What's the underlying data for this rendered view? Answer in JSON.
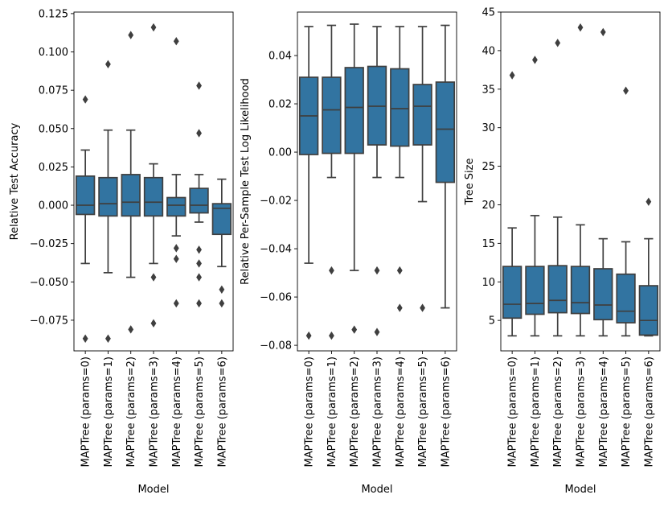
{
  "colors": {
    "box_fill": "#3274a1",
    "line": "#3f3f3f",
    "axis": "#000000",
    "background": "#ffffff"
  },
  "chart_data": [
    {
      "type": "box",
      "title": "",
      "xlabel": "Model",
      "ylabel": "Relative Test Accuracy",
      "ylim": [
        -0.095,
        0.126
      ],
      "yticks": [
        -0.075,
        -0.05,
        -0.025,
        0.0,
        0.025,
        0.05,
        0.075,
        0.1,
        0.125
      ],
      "ytick_labels": [
        "−0.075",
        "−0.050",
        "−0.025",
        "0.000",
        "0.025",
        "0.050",
        "0.075",
        "0.100",
        "0.125"
      ],
      "categories": [
        "MAPTree (params=0)",
        "MAPTree (params=1)",
        "MAPTree (params=2)",
        "MAPTree (params=3)",
        "MAPTree (params=4)",
        "MAPTree (params=5)",
        "MAPTree (params=6)"
      ],
      "boxes": [
        {
          "whislo": -0.038,
          "q1": -0.006,
          "med": 0.0,
          "q3": 0.019,
          "whishi": 0.036,
          "fliers": [
            0.069,
            -0.087
          ]
        },
        {
          "whislo": -0.044,
          "q1": -0.007,
          "med": 0.001,
          "q3": 0.018,
          "whishi": 0.049,
          "fliers": [
            0.092,
            -0.087
          ]
        },
        {
          "whislo": -0.047,
          "q1": -0.007,
          "med": 0.002,
          "q3": 0.02,
          "whishi": 0.049,
          "fliers": [
            0.111,
            -0.081
          ]
        },
        {
          "whislo": -0.038,
          "q1": -0.007,
          "med": 0.002,
          "q3": 0.018,
          "whishi": 0.027,
          "fliers": [
            0.116,
            -0.047,
            -0.077
          ]
        },
        {
          "whislo": -0.02,
          "q1": -0.007,
          "med": 0.0,
          "q3": 0.005,
          "whishi": 0.02,
          "fliers": [
            0.107,
            -0.028,
            -0.035,
            -0.064
          ]
        },
        {
          "whislo": -0.011,
          "q1": -0.005,
          "med": 0.0,
          "q3": 0.011,
          "whishi": 0.02,
          "fliers": [
            0.078,
            0.047,
            -0.029,
            -0.038,
            -0.047,
            -0.064
          ]
        },
        {
          "whislo": -0.04,
          "q1": -0.019,
          "med": -0.002,
          "q3": 0.001,
          "whishi": 0.017,
          "fliers": [
            -0.055,
            -0.064
          ]
        }
      ]
    },
    {
      "type": "box",
      "title": "",
      "xlabel": "Model",
      "ylabel": "Relative Per-Sample Test Log Likelihood",
      "ylim": [
        -0.0823,
        0.058
      ],
      "yticks": [
        -0.08,
        -0.06,
        -0.04,
        -0.02,
        0.0,
        0.02,
        0.04
      ],
      "ytick_labels": [
        "−0.08",
        "−0.06",
        "−0.04",
        "−0.02",
        "0.00",
        "0.02",
        "0.04"
      ],
      "categories": [
        "MAPTree (params=0)",
        "MAPTree (params=1)",
        "MAPTree (params=2)",
        "MAPTree (params=3)",
        "MAPTree (params=4)",
        "MAPTree (params=5)",
        "MAPTree (params=6)"
      ],
      "boxes": [
        {
          "whislo": -0.046,
          "q1": -0.001,
          "med": 0.015,
          "q3": 0.031,
          "whishi": 0.052,
          "fliers": [
            -0.076
          ]
        },
        {
          "whislo": -0.0105,
          "q1": -0.0005,
          "med": 0.0175,
          "q3": 0.031,
          "whishi": 0.0525,
          "fliers": [
            -0.049,
            -0.076
          ]
        },
        {
          "whislo": -0.049,
          "q1": -0.0005,
          "med": 0.0185,
          "q3": 0.035,
          "whishi": 0.053,
          "fliers": [
            -0.0735
          ]
        },
        {
          "whislo": -0.0105,
          "q1": 0.003,
          "med": 0.019,
          "q3": 0.0355,
          "whishi": 0.052,
          "fliers": [
            -0.049,
            -0.0745
          ]
        },
        {
          "whislo": -0.0105,
          "q1": 0.0025,
          "med": 0.018,
          "q3": 0.0345,
          "whishi": 0.052,
          "fliers": [
            -0.049,
            -0.0645
          ]
        },
        {
          "whislo": -0.0205,
          "q1": 0.003,
          "med": 0.019,
          "q3": 0.028,
          "whishi": 0.052,
          "fliers": [
            -0.0645
          ]
        },
        {
          "whislo": -0.0645,
          "q1": -0.0125,
          "med": 0.0095,
          "q3": 0.029,
          "whishi": 0.0525,
          "fliers": []
        }
      ]
    },
    {
      "type": "box",
      "title": "",
      "xlabel": "Model",
      "ylabel": "Tree Size",
      "ylim": [
        1.05,
        45.0
      ],
      "yticks": [
        5,
        10,
        15,
        20,
        25,
        30,
        35,
        40,
        45
      ],
      "ytick_labels": [
        "5",
        "10",
        "15",
        "20",
        "25",
        "30",
        "35",
        "40",
        "45"
      ],
      "categories": [
        "MAPTree (params=0)",
        "MAPTree (params=1)",
        "MAPTree (params=2)",
        "MAPTree (params=3)",
        "MAPTree (params=4)",
        "MAPTree (params=5)",
        "MAPTree (params=6)"
      ],
      "boxes": [
        {
          "whislo": 3,
          "q1": 5.3,
          "med": 7.1,
          "q3": 12.0,
          "whishi": 17.0,
          "fliers": [
            36.8
          ]
        },
        {
          "whislo": 3,
          "q1": 5.8,
          "med": 7.2,
          "q3": 12.0,
          "whishi": 18.6,
          "fliers": [
            38.8
          ]
        },
        {
          "whislo": 3,
          "q1": 6.0,
          "med": 7.6,
          "q3": 12.1,
          "whishi": 18.4,
          "fliers": [
            41.0
          ]
        },
        {
          "whislo": 3,
          "q1": 5.9,
          "med": 7.3,
          "q3": 12.0,
          "whishi": 17.4,
          "fliers": [
            43.0
          ]
        },
        {
          "whislo": 3,
          "q1": 5.1,
          "med": 7.0,
          "q3": 11.7,
          "whishi": 15.6,
          "fliers": [
            42.4
          ]
        },
        {
          "whislo": 3,
          "q1": 4.7,
          "med": 6.2,
          "q3": 11.0,
          "whishi": 15.2,
          "fliers": [
            34.8
          ]
        },
        {
          "whislo": 3,
          "q1": 3.1,
          "med": 5.0,
          "q3": 9.5,
          "whishi": 15.6,
          "fliers": [
            20.4
          ]
        }
      ]
    }
  ]
}
